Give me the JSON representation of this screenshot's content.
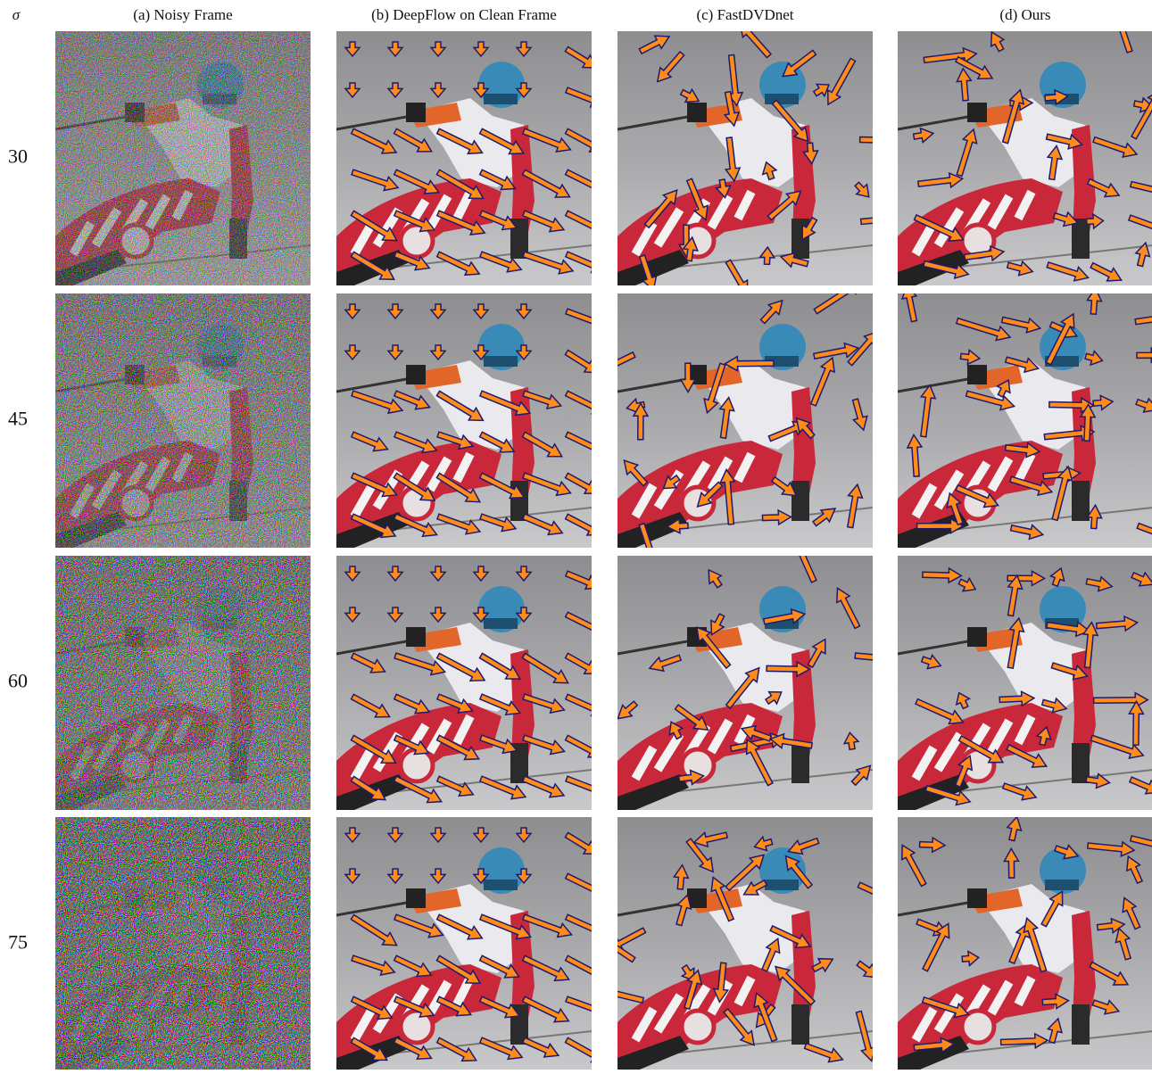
{
  "figure": {
    "sigma_label": "σ",
    "columns": [
      "(a) Noisy Frame",
      "(b) DeepFlow on Clean Frame",
      "(c) FastDVDnet",
      "(d) Ours"
    ],
    "rows": [
      "30",
      "45",
      "60",
      "75"
    ]
  }
}
